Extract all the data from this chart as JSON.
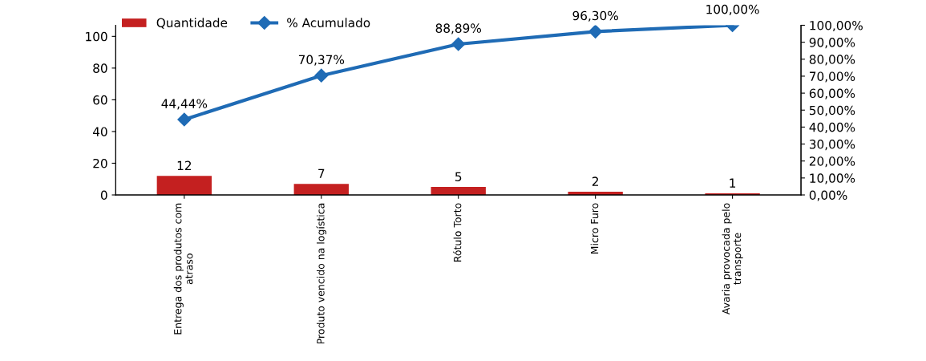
{
  "chart_data": {
    "type": "bar",
    "categories": [
      "Entrega dos produtos com\natraso",
      "Produto vencido na logística",
      "Rótulo Torto",
      "Micro Furo",
      "Avaria provocada pelo\ntransporte"
    ],
    "series": [
      {
        "name": "Quantidade",
        "color": "#c42020",
        "values": [
          12,
          7,
          5,
          2,
          1
        ],
        "data_labels": true
      },
      {
        "name": "% Acumulado",
        "type": "line",
        "axis": "y2",
        "color": "#1f6bb5",
        "marker": "diamond",
        "values": [
          44.44,
          70.37,
          88.89,
          96.3,
          100.0
        ],
        "value_labels": [
          "44,44%",
          "70,37%",
          "88,89%",
          "96,30%",
          "100,00%"
        ]
      }
    ],
    "ylim": [
      0,
      107
    ],
    "yticks": [
      0,
      20,
      40,
      60,
      80,
      100
    ],
    "y2lim": [
      0,
      100
    ],
    "y2ticks": [
      {
        "value": 0,
        "label": "0,00%"
      },
      {
        "value": 10,
        "label": "10,00%"
      },
      {
        "value": 20,
        "label": "20,00%"
      },
      {
        "value": 30,
        "label": "30,00%"
      },
      {
        "value": 40,
        "label": "40,00%"
      },
      {
        "value": 50,
        "label": "50,00%"
      },
      {
        "value": 60,
        "label": "60,00%"
      },
      {
        "value": 70,
        "label": "70,00%"
      },
      {
        "value": 80,
        "label": "80,00%"
      },
      {
        "value": 90,
        "label": "90,00%"
      },
      {
        "value": 100,
        "label": "100,00%"
      }
    ],
    "legend": "top left",
    "grid": false
  }
}
